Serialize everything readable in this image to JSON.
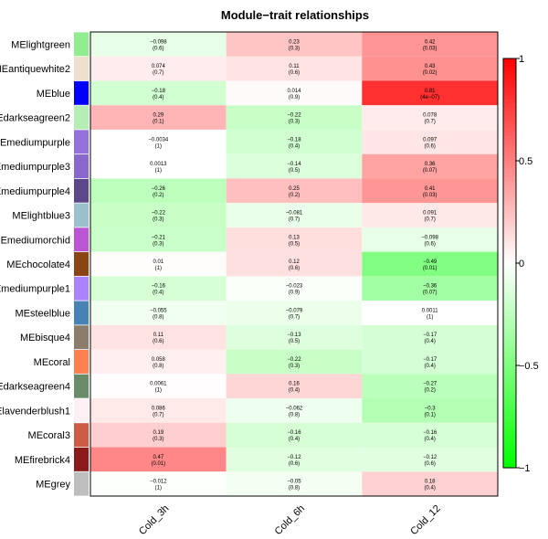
{
  "chart_data": {
    "type": "heatmap",
    "title": "Module−trait relationships",
    "columns": [
      "Cold_3h",
      "Cold_6h",
      "Cold_12"
    ],
    "rows": [
      {
        "module": "MElightgreen",
        "color": "#90ee90",
        "values": [
          "−0.098",
          "0.23",
          "0.42"
        ],
        "pvalues": [
          "(0.6)",
          "(0.3)",
          "(0.03)"
        ],
        "r": [
          -0.098,
          0.23,
          0.42
        ]
      },
      {
        "module": "MEantiquewhite2",
        "color": "#eedfcc",
        "values": [
          "0.074",
          "0.11",
          "0.43"
        ],
        "pvalues": [
          "(0.7)",
          "(0.6)",
          "(0.02)"
        ],
        "r": [
          0.074,
          0.11,
          0.43
        ]
      },
      {
        "module": "MEblue",
        "color": "#0000ff",
        "values": [
          "−0.18",
          "0.014",
          "0.81"
        ],
        "pvalues": [
          "(0.4)",
          "(0.9)",
          "(4e−07)"
        ],
        "r": [
          -0.18,
          0.014,
          0.81
        ]
      },
      {
        "module": "MEdarkseagreen2",
        "color": "#b4eeb4",
        "values": [
          "0.29",
          "−0.22",
          "0.078"
        ],
        "pvalues": [
          "(0.1)",
          "(0.3)",
          "(0.7)"
        ],
        "r": [
          0.29,
          -0.22,
          0.078
        ]
      },
      {
        "module": "MEmediumpurple",
        "color": "#9370db",
        "values": [
          "−0.0034",
          "−0.18",
          "0.097"
        ],
        "pvalues": [
          "(1)",
          "(0.4)",
          "(0.6)"
        ],
        "r": [
          -0.0034,
          -0.18,
          0.097
        ]
      },
      {
        "module": "MEmediumpurple3",
        "color": "#8968cd",
        "values": [
          "0.0013",
          "−0.14",
          "0.36"
        ],
        "pvalues": [
          "(1)",
          "(0.5)",
          "(0.07)"
        ],
        "r": [
          0.0013,
          -0.14,
          0.36
        ]
      },
      {
        "module": "MEmediumpurple4",
        "color": "#5d478b",
        "values": [
          "−0.26",
          "0.25",
          "0.41"
        ],
        "pvalues": [
          "(0.2)",
          "(0.2)",
          "(0.03)"
        ],
        "r": [
          -0.26,
          0.25,
          0.41
        ]
      },
      {
        "module": "MElightblue3",
        "color": "#9ac0cd",
        "values": [
          "−0.22",
          "−0.081",
          "0.091"
        ],
        "pvalues": [
          "(0.3)",
          "(0.7)",
          "(0.7)"
        ],
        "r": [
          -0.22,
          -0.081,
          0.091
        ]
      },
      {
        "module": "MEmediumorchid",
        "color": "#ba55d3",
        "values": [
          "−0.21",
          "0.13",
          "−0.098"
        ],
        "pvalues": [
          "(0.3)",
          "(0.5)",
          "(0.6)"
        ],
        "r": [
          -0.21,
          0.13,
          -0.098
        ]
      },
      {
        "module": "MEchocolate4",
        "color": "#8b4513",
        "values": [
          "0.01",
          "0.12",
          "−0.49"
        ],
        "pvalues": [
          "(1)",
          "(0.6)",
          "(0.01)"
        ],
        "r": [
          0.01,
          0.12,
          -0.49
        ]
      },
      {
        "module": "MEmediumpurple1",
        "color": "#ab82ff",
        "values": [
          "−0.16",
          "−0.023",
          "−0.36"
        ],
        "pvalues": [
          "(0.4)",
          "(0.9)",
          "(0.07)"
        ],
        "r": [
          -0.16,
          -0.023,
          -0.36
        ]
      },
      {
        "module": "MEsteelblue",
        "color": "#4682b4",
        "values": [
          "−0.055",
          "−0.079",
          "0.0011"
        ],
        "pvalues": [
          "(0.8)",
          "(0.7)",
          "(1)"
        ],
        "r": [
          -0.055,
          -0.079,
          0.0011
        ]
      },
      {
        "module": "MEbisque4",
        "color": "#8b7d6b",
        "values": [
          "0.11",
          "−0.13",
          "−0.17"
        ],
        "pvalues": [
          "(0.6)",
          "(0.5)",
          "(0.4)"
        ],
        "r": [
          0.11,
          -0.13,
          -0.17
        ]
      },
      {
        "module": "MEcoral",
        "color": "#ff7f50",
        "values": [
          "0.058",
          "−0.22",
          "−0.17"
        ],
        "pvalues": [
          "(0.8)",
          "(0.3)",
          "(0.4)"
        ],
        "r": [
          0.058,
          -0.22,
          -0.17
        ]
      },
      {
        "module": "MEdarkseagreen4",
        "color": "#698b69",
        "values": [
          "0.0061",
          "0.16",
          "−0.27"
        ],
        "pvalues": [
          "(1)",
          "(0.4)",
          "(0.2)"
        ],
        "r": [
          0.0061,
          0.16,
          -0.27
        ]
      },
      {
        "module": "MElavenderblush1",
        "color": "#fff0f5",
        "values": [
          "0.086",
          "−0.062",
          "−0.3"
        ],
        "pvalues": [
          "(0.7)",
          "(0.8)",
          "(0.1)"
        ],
        "r": [
          0.086,
          -0.062,
          -0.3
        ]
      },
      {
        "module": "MEcoral3",
        "color": "#cd5b45",
        "values": [
          "0.19",
          "−0.16",
          "−0.16"
        ],
        "pvalues": [
          "(0.3)",
          "(0.4)",
          "(0.4)"
        ],
        "r": [
          0.19,
          -0.16,
          -0.16
        ]
      },
      {
        "module": "MEfirebrick4",
        "color": "#8b1a1a",
        "values": [
          "0.47",
          "−0.12",
          "−0.12"
        ],
        "pvalues": [
          "(0.01)",
          "(0.6)",
          "(0.6)"
        ],
        "r": [
          0.47,
          -0.12,
          -0.12
        ]
      },
      {
        "module": "MEgrey",
        "color": "#bebebe",
        "values": [
          "−0.012",
          "−0.05",
          "0.18"
        ],
        "pvalues": [
          "(1)",
          "(0.8)",
          "(0.4)"
        ],
        "r": [
          -0.012,
          -0.05,
          0.18
        ]
      }
    ],
    "colorbar": {
      "range": [
        -1,
        1
      ],
      "ticks": [
        1,
        0.5,
        0,
        -0.5,
        -1
      ],
      "tick_labels": [
        "1",
        "0.5",
        "0",
        "−0.5",
        "−1"
      ],
      "low_color": "#00ff00",
      "mid_color": "#ffffff",
      "high_color": "#ff0000"
    }
  }
}
